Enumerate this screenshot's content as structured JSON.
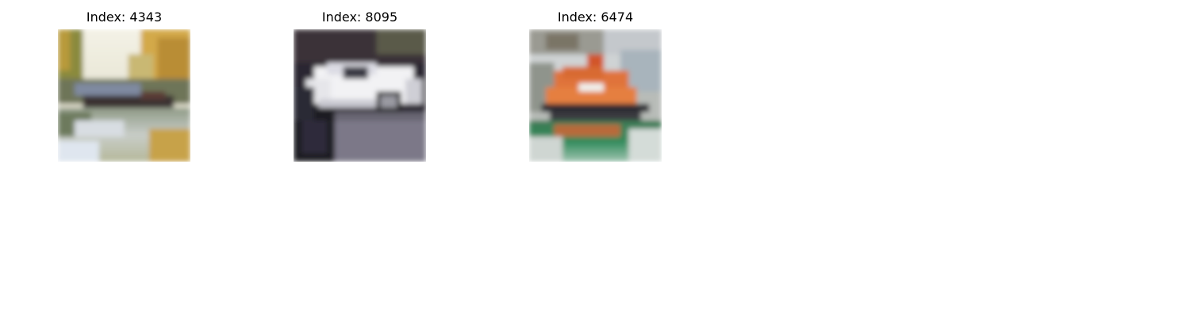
{
  "panels": [
    {
      "title": "Index: 4343",
      "scene": "canal-boat-image"
    },
    {
      "title": "Index: 8095",
      "scene": "white-sports-car-image"
    },
    {
      "title": "Index: 6474",
      "scene": "orange-lifeboat-image"
    }
  ]
}
